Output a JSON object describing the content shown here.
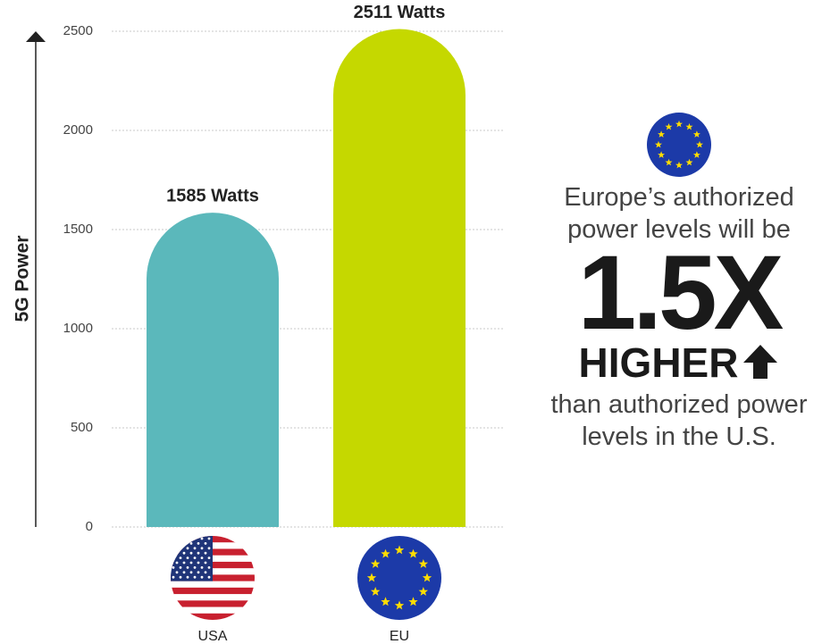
{
  "chart_data": {
    "type": "bar",
    "categories": [
      "USA",
      "EU"
    ],
    "values": [
      1585,
      2511
    ],
    "value_labels": [
      "1585 Watts",
      "2511 Watts"
    ],
    "colors": [
      "#5bb8bb",
      "#c5d800"
    ],
    "y_label": "5G Power",
    "ylim": [
      0,
      2500
    ],
    "yticks": [
      0,
      500,
      1000,
      1500,
      2000,
      2500
    ],
    "grid": true,
    "annotation": {
      "intro": "Europe’s authorized power levels will be",
      "figure": "1.5X",
      "emphasis": "HIGHER",
      "outro": "than authorized power levels in the U.S."
    }
  }
}
